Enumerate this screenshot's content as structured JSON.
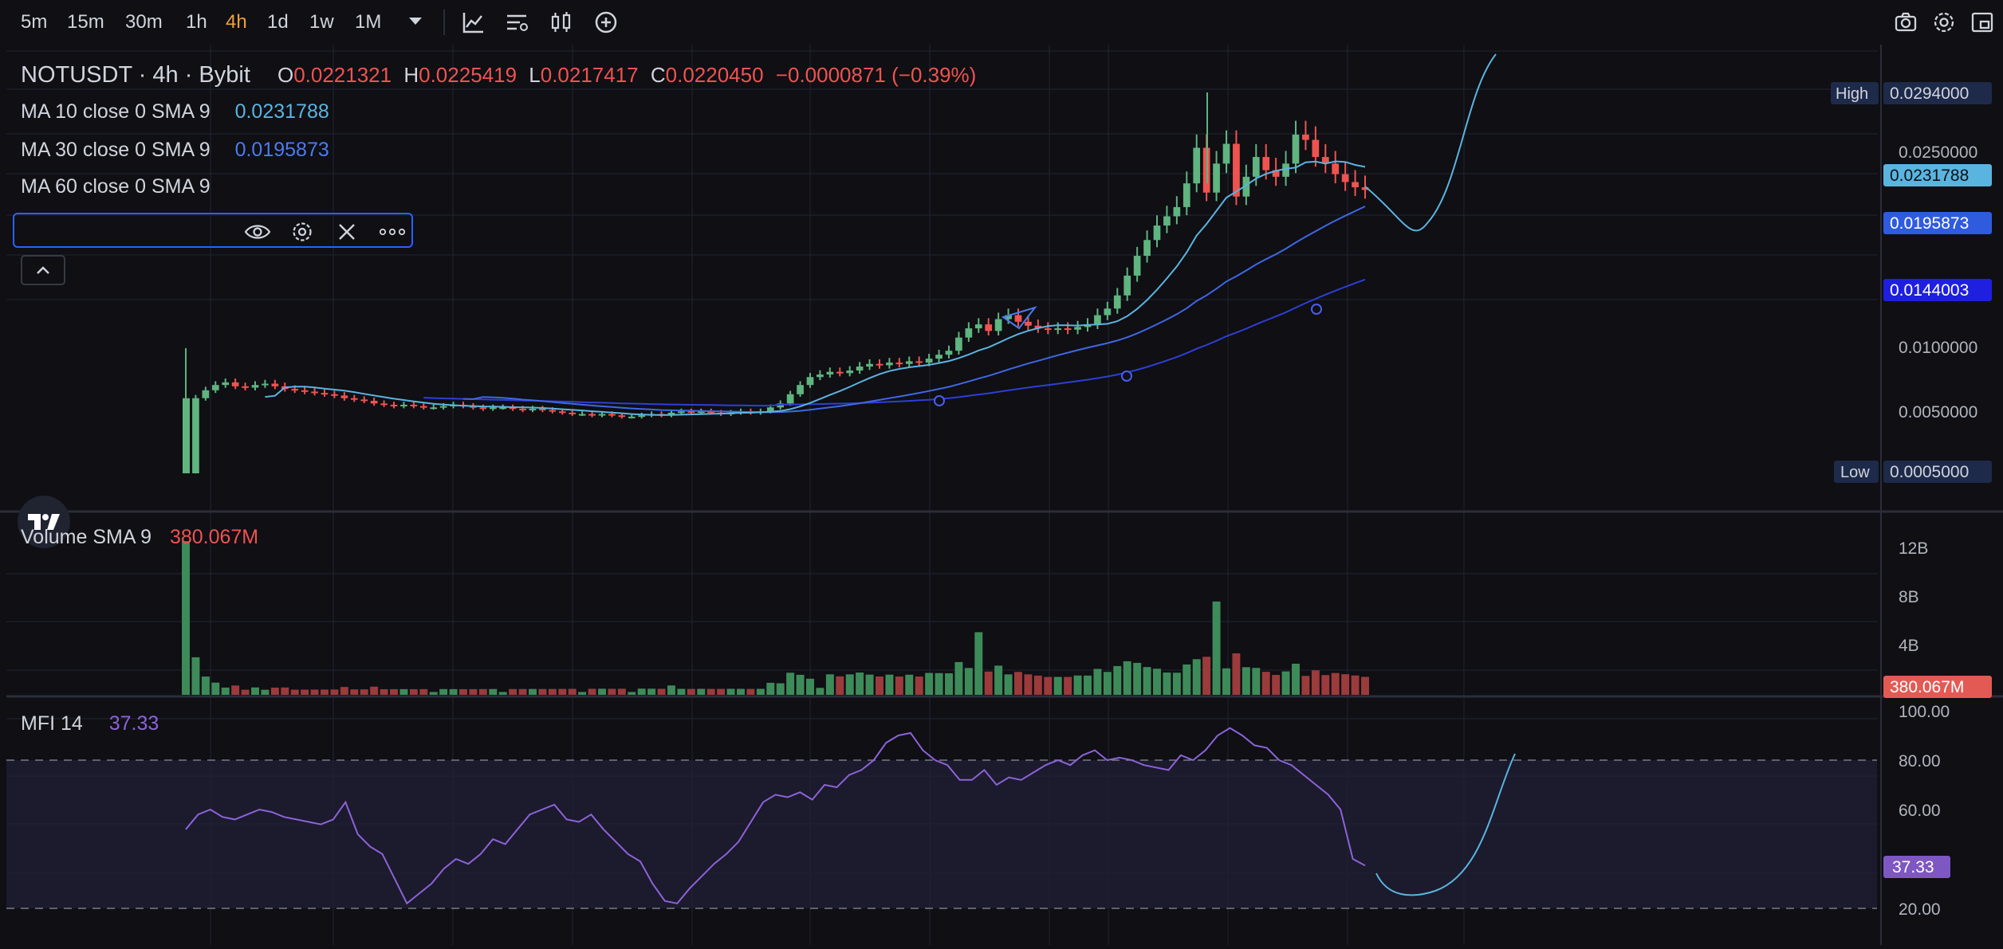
{
  "toolbar": {
    "timeframes": [
      "5m",
      "15m",
      "30m",
      "1h",
      "4h",
      "1d",
      "1w",
      "1M"
    ],
    "active_timeframe": "4h"
  },
  "legend": {
    "symbol": "NOTUSDT · 4h · Bybit",
    "o_label": "O",
    "o_value": "0.0221321",
    "h_label": "H",
    "h_value": "0.0225419",
    "l_label": "L",
    "l_value": "0.0217417",
    "c_label": "C",
    "c_value": "0.0220450",
    "change": "−0.0000871 (−0.39%)",
    "ma10_name": "MA 10 close 0 SMA 9",
    "ma10_value": "0.0231788",
    "ma30_name": "MA 30 close 0 SMA 9",
    "ma30_value": "0.0195873",
    "ma60_name": "MA 60 close 0 SMA 9"
  },
  "price_axis": {
    "ticks": [
      "0.0250000",
      "0.0100000",
      "0.0050000"
    ],
    "high_label": "High",
    "high_value": "0.0294000",
    "low_label": "Low",
    "low_value": "0.0005000",
    "ma10_tag": "0.0231788",
    "ma30_tag": "0.0195873",
    "ma60_tag": "0.0144003"
  },
  "volume": {
    "title": "Volume SMA 9",
    "value": "380.067M",
    "ticks": [
      "12B",
      "8B",
      "4B"
    ],
    "tag": "380.067M"
  },
  "mfi": {
    "title": "MFI 14",
    "value": "37.33",
    "ticks": [
      "100.00",
      "80.00",
      "60.00",
      "20.00"
    ],
    "tag": "37.33"
  },
  "colors": {
    "up": "#26a69a",
    "up_candle": "#5fb47f",
    "down": "#ef5350",
    "ma10": "#5ab4e0",
    "ma30": "#3f67e6",
    "ma60": "#2d3fd6",
    "mfi": "#7e57c2",
    "background": "#0f0f14"
  },
  "chart_data": [
    {
      "type": "candlestick",
      "title": "NOTUSDT · 4h · Bybit",
      "series": [
        {
          "name": "MA 10 close 0 SMA 9",
          "last": 0.0231788
        },
        {
          "name": "MA 30 close 0 SMA 9",
          "last": 0.0195873
        },
        {
          "name": "MA 60 close 0 SMA 9",
          "last": 0.0144003
        }
      ],
      "closes": [
        0.0005,
        0.0062,
        0.0068,
        0.0072,
        0.0074,
        0.0071,
        0.007,
        0.0072,
        0.0073,
        0.0071,
        0.0069,
        0.0068,
        0.0067,
        0.0066,
        0.0065,
        0.0064,
        0.0062,
        0.0061,
        0.006,
        0.0058,
        0.0057,
        0.0056,
        0.0057,
        0.0056,
        0.0055,
        0.0055,
        0.0056,
        0.0057,
        0.0056,
        0.0055,
        0.0054,
        0.0055,
        0.0055,
        0.0054,
        0.0053,
        0.0054,
        0.0053,
        0.0052,
        0.0051,
        0.005,
        0.005,
        0.0049,
        0.005,
        0.0049,
        0.0048,
        0.0048,
        0.0049,
        0.005,
        0.0049,
        0.0051,
        0.0052,
        0.0051,
        0.0052,
        0.0051,
        0.005,
        0.0051,
        0.0052,
        0.0051,
        0.0052,
        0.0055,
        0.0058,
        0.0065,
        0.0072,
        0.0078,
        0.008,
        0.0082,
        0.0081,
        0.0083,
        0.0086,
        0.0088,
        0.0087,
        0.0089,
        0.0088,
        0.009,
        0.0089,
        0.0092,
        0.0095,
        0.0098,
        0.0108,
        0.0115,
        0.0118,
        0.0113,
        0.0122,
        0.0125,
        0.012,
        0.0117,
        0.0115,
        0.0114,
        0.0115,
        0.0114,
        0.0116,
        0.0118,
        0.0125,
        0.013,
        0.014,
        0.0155,
        0.017,
        0.0182,
        0.0193,
        0.02,
        0.0207,
        0.0225,
        0.0252,
        0.0218,
        0.024,
        0.0255,
        0.0215,
        0.023,
        0.0245,
        0.0235,
        0.023,
        0.024,
        0.0262,
        0.0258,
        0.0245,
        0.024,
        0.0232,
        0.0226,
        0.0222,
        0.022
      ],
      "high": 0.0294,
      "low": 0.0005
    },
    {
      "type": "bar",
      "title": "Volume SMA 9",
      "ylim": [
        0,
        14000000000
      ],
      "last": 380067000
    },
    {
      "type": "line",
      "title": "MFI 14",
      "ylim": [
        0,
        100
      ],
      "values": [
        52,
        58,
        60,
        57,
        56,
        58,
        60,
        59,
        57,
        56,
        55,
        54,
        56,
        63,
        50,
        45,
        42,
        32,
        22,
        26,
        30,
        36,
        40,
        38,
        42,
        48,
        46,
        52,
        58,
        60,
        62,
        56,
        55,
        58,
        52,
        47,
        42,
        39,
        30,
        23,
        22,
        28,
        33,
        38,
        42,
        47,
        55,
        63,
        66,
        65,
        67,
        64,
        70,
        69,
        74,
        76,
        80,
        87,
        90,
        91,
        84,
        80,
        78,
        72,
        72,
        76,
        70,
        73,
        72,
        75,
        78,
        80,
        78,
        82,
        84,
        80,
        81,
        80,
        78,
        77,
        76,
        82,
        80,
        84,
        90,
        93,
        90,
        86,
        85,
        80,
        78,
        74,
        70,
        66,
        60,
        40,
        37.33
      ],
      "last": 37.33
    }
  ]
}
